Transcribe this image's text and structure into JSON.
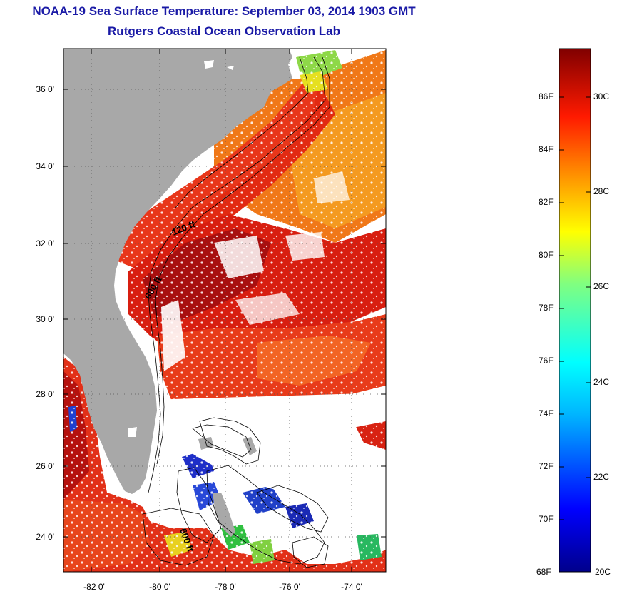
{
  "header": {
    "title_line1": "NOAA-19 Sea Surface Temperature:  September 03, 2014 1903 GMT",
    "title_line2": "Rutgers Coastal Ocean Observation Lab"
  },
  "map": {
    "lat_labels": [
      "36 0'",
      "34 0'",
      "32 0'",
      "30 0'",
      "28 0'",
      "26 0'",
      "24 0'"
    ],
    "lon_labels": [
      "-82 0'",
      "-80 0'",
      "-78 0'",
      "-76 0'",
      "-74 0'"
    ],
    "contour_labels": [
      "120 ft",
      "600 ft",
      "600 ft"
    ]
  },
  "colorbar": {
    "fahrenheit_labels": [
      "86F",
      "84F",
      "82F",
      "80F",
      "78F",
      "76F",
      "74F",
      "72F",
      "70F",
      "68F"
    ],
    "celsius_labels": [
      "30C",
      "28C",
      "26C",
      "24C",
      "22C",
      "20C"
    ],
    "range_f": [
      68,
      88
    ],
    "range_c": [
      20,
      31
    ]
  },
  "colors": {
    "title": "#1a1aa6",
    "land": "#a8a8a8",
    "warm": "#d42a10",
    "hot": "#9e0d0d",
    "cool": "#1f1fb4"
  }
}
